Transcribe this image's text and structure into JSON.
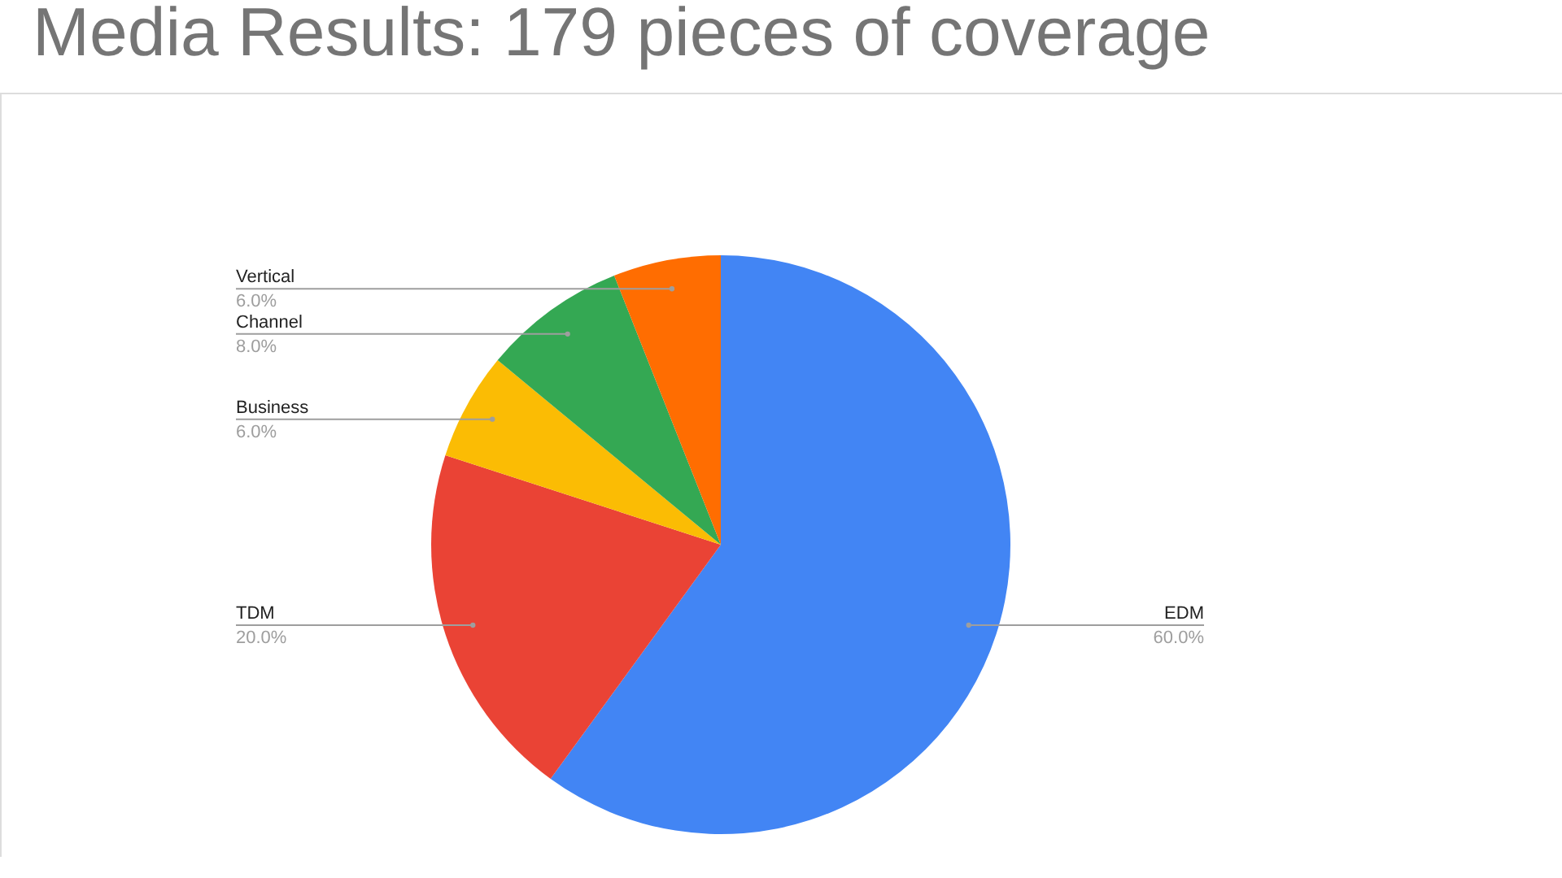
{
  "chart_data": {
    "type": "pie",
    "title": "Media Results: 179 pieces of coverage",
    "categories": [
      "EDM",
      "TDM",
      "Business",
      "Channel",
      "Vertical"
    ],
    "values": [
      60,
      20,
      6,
      8,
      6
    ],
    "value_labels": [
      "60.0%",
      "20.0%",
      "6.0%",
      "8.0%",
      "6.0%"
    ],
    "colors": [
      "#4285f4",
      "#ea4335",
      "#fbbc04",
      "#34a853",
      "#ff6d01"
    ],
    "legend": false
  }
}
